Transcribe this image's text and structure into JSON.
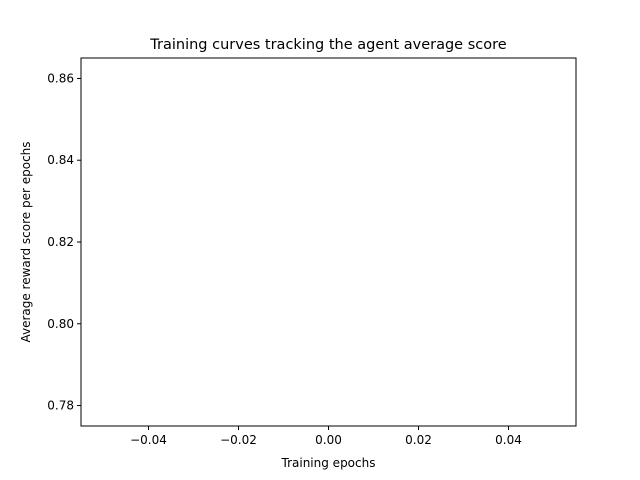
{
  "chart_data": {
    "type": "line",
    "title": "Training curves tracking the agent average score",
    "xlabel": "Training epochs",
    "ylabel": "Average reward score per epochs",
    "xlim": [
      -0.055,
      0.055
    ],
    "ylim": [
      0.775,
      0.865
    ],
    "x_ticks": [
      -0.04,
      -0.02,
      0.0,
      0.02,
      0.04
    ],
    "x_tick_labels": [
      "−0.04",
      "−0.02",
      "0.00",
      "0.02",
      "0.04"
    ],
    "y_ticks": [
      0.78,
      0.8,
      0.82,
      0.84,
      0.86
    ],
    "y_tick_labels": [
      "0.78",
      "0.80",
      "0.82",
      "0.84",
      "0.86"
    ],
    "grid": false,
    "series": []
  }
}
